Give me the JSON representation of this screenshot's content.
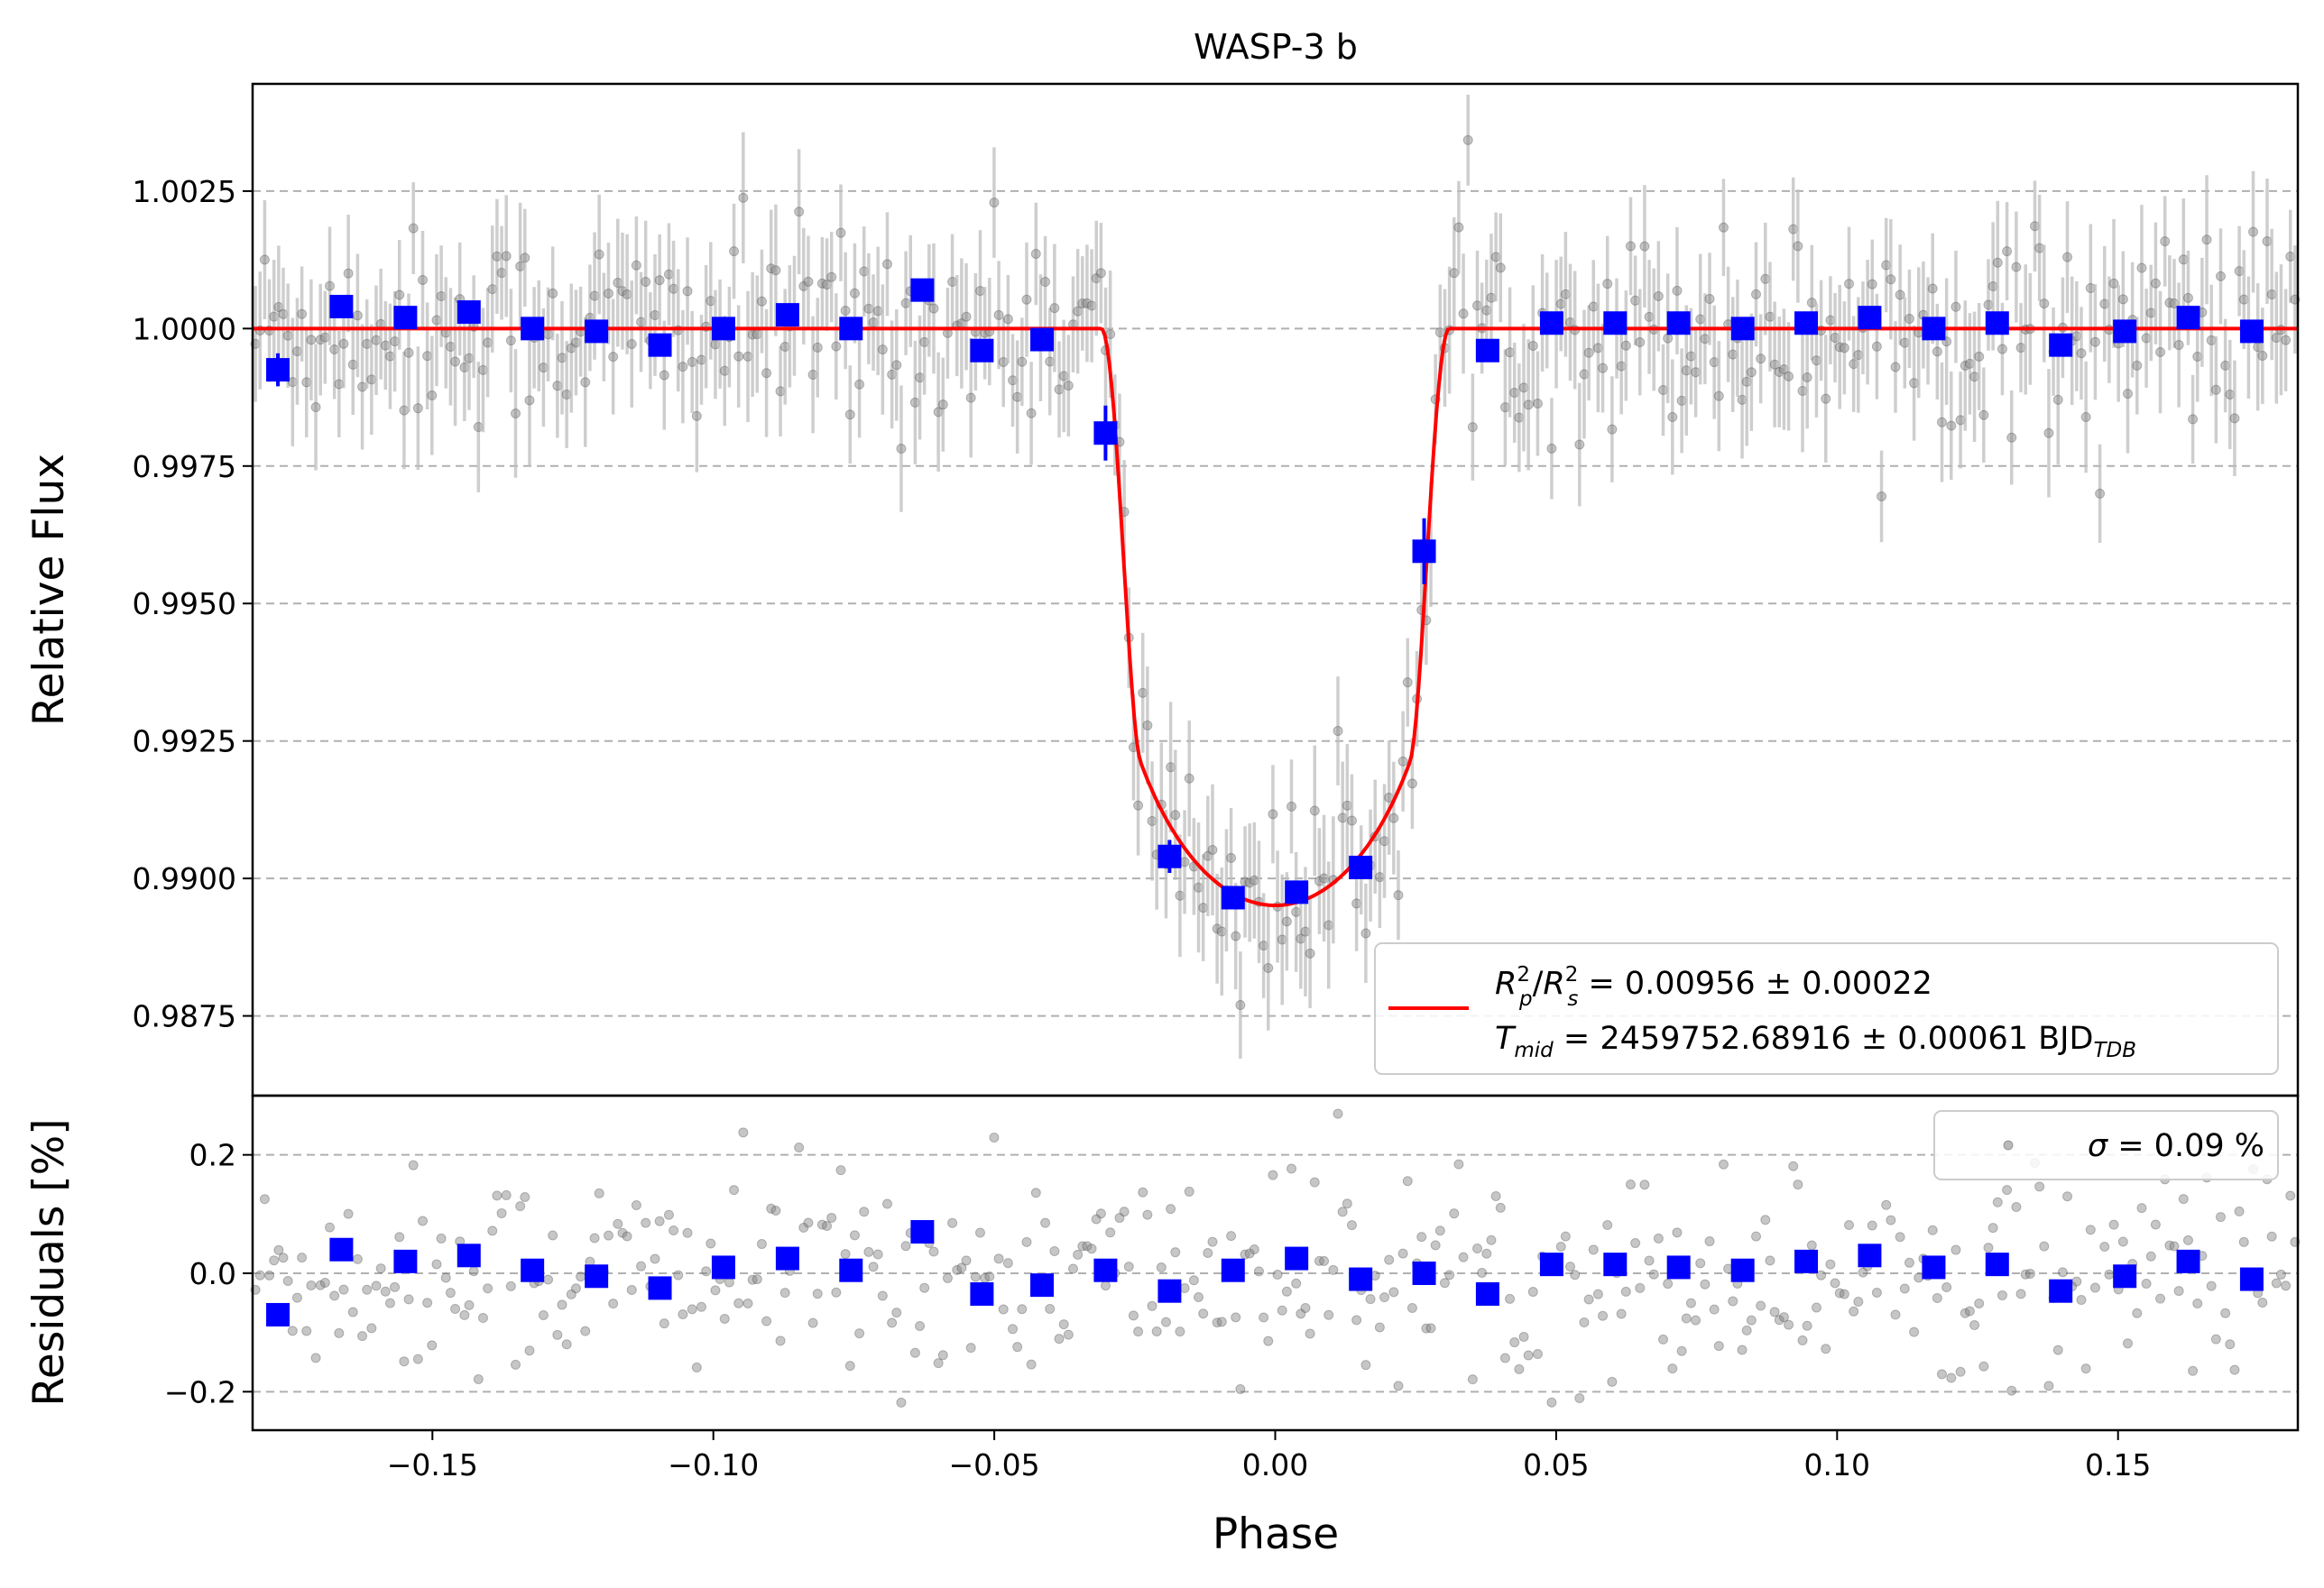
{
  "chart_data": [
    {
      "type": "scatter",
      "title": "WASP-3 b",
      "xlabel": "",
      "ylabel": "Relative Flux",
      "xlim": [
        -0.182,
        0.182
      ],
      "ylim": [
        0.98605,
        1.00445
      ],
      "y_ticks": [
        "1.0025",
        "1.0000",
        "0.9975",
        "0.9950",
        "0.9925",
        "0.9900",
        "0.9875"
      ],
      "y_tick_values": [
        1.0025,
        1.0,
        0.9975,
        0.995,
        0.9925,
        0.99,
        0.9875
      ],
      "grid": "horizontal dashed",
      "legend_position": "lower-right",
      "model": {
        "legend_line1": "R",
        "legend_line2": "T",
        "rp2_rs2": "0.00956",
        "rp2_rs2_err": "0.00022",
        "tmid": "2459752.68916",
        "tmid_err": "0.00061",
        "time_system": "BJD",
        "time_system_sub": "TDB",
        "depth": 0.01049,
        "t1": -0.031,
        "t2": -0.024,
        "t3": 0.024,
        "t4": 0.031,
        "color": "#ff0000"
      },
      "raw_points_color": "#808080",
      "raw_error_color": "#bdbdbd",
      "binned": {
        "color": "#0000ff",
        "x": [
          -0.1775,
          -0.1662,
          -0.1548,
          -0.1435,
          -0.1322,
          -0.1208,
          -0.1095,
          -0.0982,
          -0.0868,
          -0.0755,
          -0.0628,
          -0.0522,
          -0.0415,
          -0.0302,
          -0.0188,
          -0.0075,
          0.0038,
          0.0152,
          0.0265,
          0.0378,
          0.0492,
          0.0605,
          0.0718,
          0.0832,
          0.0945,
          0.1058,
          0.1172,
          0.1285,
          0.1398,
          0.1512,
          0.1625,
          0.1738
        ],
        "y": [
          0.99925,
          1.0004,
          1.0002,
          1.0003,
          1.0,
          0.99995,
          0.9997,
          1.0,
          1.00025,
          1.0,
          1.0007,
          0.9996,
          0.9998,
          0.9981,
          0.9904,
          0.98965,
          0.98975,
          0.9902,
          0.99595,
          0.9996,
          1.0001,
          1.0001,
          1.0001,
          1.0,
          1.0001,
          1.0002,
          1.0,
          1.0001,
          0.9997,
          0.99995,
          1.0002,
          0.99995
        ],
        "yerr": [
          0.0003,
          0.00015,
          0.00015,
          0.00015,
          0.00015,
          0.00015,
          0.00015,
          0.00015,
          0.00015,
          0.00015,
          0.00015,
          0.00015,
          0.00015,
          0.0005,
          0.0003,
          0.0002,
          0.0002,
          0.0002,
          0.0006,
          0.00015,
          0.00015,
          0.00015,
          0.00015,
          0.00015,
          0.00015,
          0.00015,
          0.00015,
          0.00015,
          0.00015,
          0.00015,
          0.00015,
          0.00015
        ]
      }
    },
    {
      "type": "scatter",
      "xlabel": "Phase",
      "ylabel": "Residuals [%]",
      "xlim": [
        -0.182,
        0.182
      ],
      "ylim": [
        -0.265,
        0.3
      ],
      "x_ticks": [
        "−0.15",
        "−0.10",
        "−0.05",
        "0.00",
        "0.05",
        "0.10",
        "0.15"
      ],
      "x_tick_values": [
        -0.15,
        -0.1,
        -0.05,
        0.0,
        0.05,
        0.1,
        0.15
      ],
      "y_ticks": [
        "0.2",
        "0.0",
        "−0.2"
      ],
      "y_tick_values": [
        0.2,
        0.0,
        -0.2
      ],
      "grid": "horizontal dashed",
      "legend_position": "top-right",
      "legend": {
        "sigma_label": "σ",
        "sigma_value": "= 0.09 %"
      },
      "binned": {
        "color": "#0000ff",
        "x": [
          -0.1775,
          -0.1662,
          -0.1548,
          -0.1435,
          -0.1322,
          -0.1208,
          -0.1095,
          -0.0982,
          -0.0868,
          -0.0755,
          -0.0628,
          -0.0522,
          -0.0415,
          -0.0302,
          -0.0188,
          -0.0075,
          0.0038,
          0.0152,
          0.0265,
          0.0378,
          0.0492,
          0.0605,
          0.0718,
          0.0832,
          0.0945,
          0.1058,
          0.1172,
          0.1285,
          0.1398,
          0.1512,
          0.1625,
          0.1738
        ],
        "y": [
          -0.07,
          0.04,
          0.02,
          0.03,
          0.005,
          -0.005,
          -0.025,
          0.01,
          0.025,
          0.005,
          0.07,
          -0.035,
          -0.02,
          0.005,
          -0.03,
          0.005,
          0.025,
          -0.01,
          0.0,
          -0.035,
          0.015,
          0.015,
          0.01,
          0.005,
          0.02,
          0.03,
          0.01,
          0.015,
          -0.03,
          -0.005,
          0.02,
          -0.01
        ]
      }
    }
  ]
}
